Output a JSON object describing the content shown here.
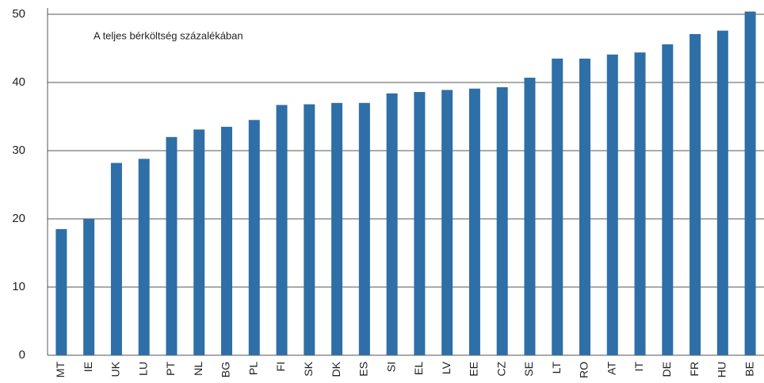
{
  "chart_data": {
    "type": "bar",
    "annotation": "A teljes bérköltség százalékában",
    "categories": [
      "MT",
      "IE",
      "UK",
      "LU",
      "PT",
      "NL",
      "BG",
      "PL",
      "FI",
      "SK",
      "DK",
      "ES",
      "SI",
      "EL",
      "LV",
      "EE",
      "CZ",
      "SE",
      "LT",
      "RO",
      "AT",
      "IT",
      "DE",
      "FR",
      "HU",
      "BE"
    ],
    "values": [
      18.5,
      20,
      28.2,
      28.8,
      32,
      33.1,
      33.5,
      34.5,
      36.7,
      36.8,
      37,
      37,
      38.4,
      38.6,
      38.9,
      39.1,
      39.3,
      40.7,
      43.5,
      43.5,
      44.1,
      44.4,
      45.6,
      47.1,
      47.6,
      50.4
    ],
    "color": "#2e6fa7",
    "ylim": [
      0,
      50
    ],
    "yticks": [
      0,
      10,
      20,
      30,
      40,
      50
    ],
    "grid": true
  }
}
